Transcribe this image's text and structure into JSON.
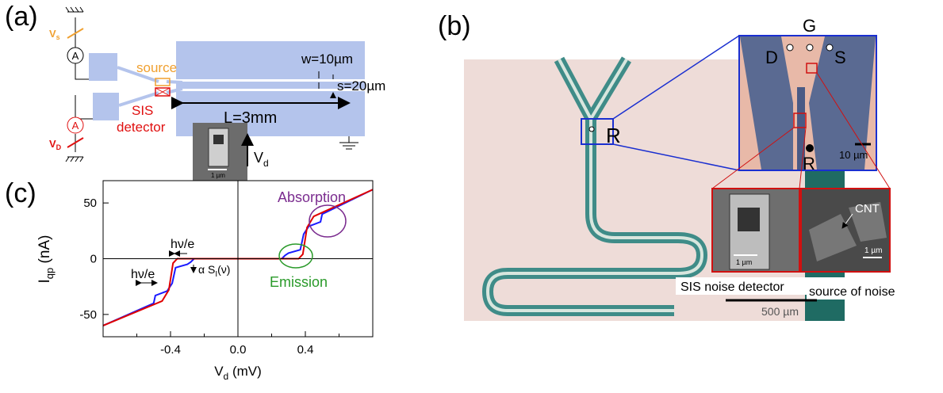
{
  "panel_a": {
    "label": "(a)",
    "vs": [
      "V",
      "s"
    ],
    "ammeter_top": "A",
    "source": "source",
    "sis": "SIS",
    "detector": "detector",
    "w": "w=10µm",
    "s": "s=20µm",
    "L": "L=3mm",
    "scale": "1 µm",
    "vd": [
      "V",
      "d"
    ],
    "ammeter_bottom": "A",
    "vD": [
      "V",
      "D"
    ]
  },
  "panel_b": {
    "label": "(b)",
    "G": "G",
    "D": "D",
    "S": "S",
    "R_inset": "R",
    "R_main": "R",
    "scale_inset": "10 µm",
    "cnt": "CNT",
    "scale_sem1": "1 µm",
    "scale_sem2": "1 µm",
    "sis_caption": "SIS noise detector",
    "source_caption": "source of noise",
    "scale_main": "500 µm"
  },
  "chart_data": {
    "type": "line",
    "panel_label": "(c)",
    "xlabel": [
      "V",
      "d",
      " (mV)"
    ],
    "ylabel": [
      "I",
      "qp",
      " (nA)"
    ],
    "xlim": [
      -0.8,
      0.8
    ],
    "ylim": [
      -70,
      70
    ],
    "xticks": [
      -0.4,
      {
        "value": 0,
        "label": "0.0"
      },
      0.4
    ],
    "xminor": [
      -0.6,
      -0.2,
      0.2,
      0.6
    ],
    "yticks": [
      -50,
      {
        "value": 0,
        "label": "0"
      },
      50
    ],
    "series": [
      {
        "color": "#e00000",
        "x": [
          -0.8,
          -0.45,
          -0.41,
          -0.385,
          -0.36,
          0.36,
          0.385,
          0.41,
          0.45,
          0.8
        ],
        "values": [
          -60,
          -38,
          -28,
          -4,
          0,
          0,
          4,
          28,
          38,
          62
        ]
      },
      {
        "color": "#1a1aff",
        "x": [
          -0.8,
          -0.5,
          -0.49,
          -0.42,
          -0.39,
          -0.37,
          -0.3,
          -0.28,
          -0.26,
          0.26,
          0.28,
          0.3,
          0.37,
          0.39,
          0.42,
          0.49,
          0.5,
          0.8
        ],
        "values": [
          -60,
          -40,
          -33,
          -29,
          -22,
          -8,
          -5,
          -3,
          0,
          0,
          3,
          5,
          8,
          22,
          29,
          33,
          40,
          62
        ]
      }
    ],
    "annotations": {
      "absorption": "Absorption",
      "emission": "Emission",
      "hv1": "hν/e",
      "hv2": "hν/e",
      "alpha": [
        "α S",
        "I",
        "(ν)"
      ]
    }
  }
}
